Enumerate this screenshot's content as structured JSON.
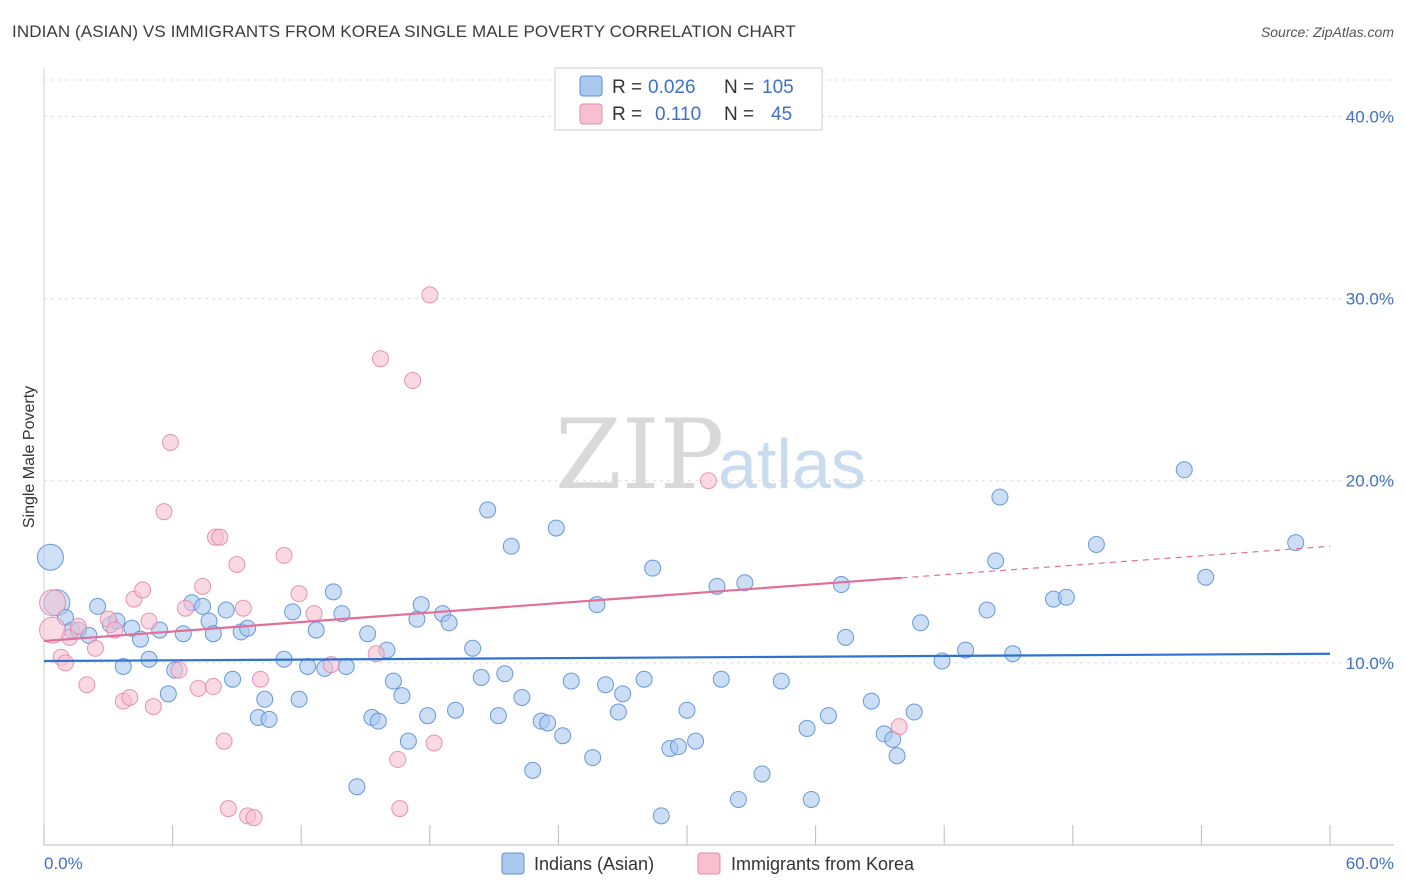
{
  "title": "INDIAN (ASIAN) VS IMMIGRANTS FROM KOREA SINGLE MALE POVERTY CORRELATION CHART",
  "source": "Source: ZipAtlas.com",
  "watermark": {
    "zip": "ZIP",
    "atlas": "atlas"
  },
  "legend": {
    "rows": [
      {
        "r_label": "R =",
        "r_value": "0.026",
        "n_label": "N =",
        "n_value": "105"
      },
      {
        "r_label": "R =",
        "r_value": "0.110",
        "n_label": "N =",
        "n_value": "45"
      }
    ]
  },
  "colors": {
    "blue_fill": "#a8c8ee",
    "blue_stroke": "#5b8fd6",
    "blue_line": "#2f72d0",
    "pink_fill": "#f7bfd0",
    "pink_stroke": "#e48aa8",
    "pink_line": "#e0709a"
  },
  "chart_data": {
    "type": "scatter",
    "title": "INDIAN (ASIAN) VS IMMIGRANTS FROM KOREA SINGLE MALE POVERTY CORRELATION CHART",
    "xlabel": "",
    "ylabel": "Single Male Poverty",
    "xlim": [
      0,
      60
    ],
    "ylim": [
      0,
      42
    ],
    "x_tick_labels": [
      "0.0%",
      "60.0%"
    ],
    "y_ticks": [
      10,
      20,
      30,
      40
    ],
    "y_tick_labels": [
      "10.0%",
      "20.0%",
      "30.0%",
      "40.0%"
    ],
    "grid": true,
    "legend_position": "top-center",
    "series": [
      {
        "name": "Indians (Asian)",
        "r": 0.026,
        "n": 105,
        "trend": {
          "x0": 0,
          "y0": 10.1,
          "x1": 60,
          "y1": 10.5,
          "dashed_from": null
        },
        "points": [
          [
            0.3,
            15.8
          ],
          [
            0.6,
            13.3
          ],
          [
            1.0,
            12.5
          ],
          [
            1.3,
            11.8
          ],
          [
            1.6,
            11.8
          ],
          [
            2.1,
            11.5
          ],
          [
            2.5,
            13.1
          ],
          [
            3.1,
            12.1
          ],
          [
            3.4,
            12.3
          ],
          [
            3.7,
            9.8
          ],
          [
            4.1,
            11.9
          ],
          [
            4.5,
            11.3
          ],
          [
            4.9,
            10.2
          ],
          [
            5.4,
            11.8
          ],
          [
            5.8,
            8.3
          ],
          [
            6.1,
            9.6
          ],
          [
            6.5,
            11.6
          ],
          [
            6.9,
            13.3
          ],
          [
            7.4,
            13.1
          ],
          [
            7.7,
            12.3
          ],
          [
            7.9,
            11.6
          ],
          [
            8.5,
            12.9
          ],
          [
            8.8,
            9.1
          ],
          [
            9.2,
            11.7
          ],
          [
            9.5,
            11.9
          ],
          [
            10.0,
            7.0
          ],
          [
            10.3,
            8.0
          ],
          [
            10.5,
            6.9
          ],
          [
            11.2,
            10.2
          ],
          [
            11.6,
            12.8
          ],
          [
            11.9,
            8.0
          ],
          [
            12.3,
            9.8
          ],
          [
            12.7,
            11.8
          ],
          [
            13.1,
            9.7
          ],
          [
            13.5,
            13.9
          ],
          [
            13.9,
            12.7
          ],
          [
            14.1,
            9.8
          ],
          [
            14.6,
            3.2
          ],
          [
            15.1,
            11.6
          ],
          [
            15.3,
            7.0
          ],
          [
            15.6,
            6.8
          ],
          [
            16.0,
            10.7
          ],
          [
            16.3,
            9.0
          ],
          [
            16.7,
            8.2
          ],
          [
            17.0,
            5.7
          ],
          [
            17.4,
            12.4
          ],
          [
            17.6,
            13.2
          ],
          [
            17.9,
            7.1
          ],
          [
            18.6,
            12.7
          ],
          [
            18.9,
            12.2
          ],
          [
            19.2,
            7.4
          ],
          [
            20.0,
            10.8
          ],
          [
            20.4,
            9.2
          ],
          [
            20.7,
            18.4
          ],
          [
            21.2,
            7.1
          ],
          [
            21.5,
            9.4
          ],
          [
            21.8,
            16.4
          ],
          [
            22.3,
            8.1
          ],
          [
            22.8,
            4.1
          ],
          [
            23.2,
            6.8
          ],
          [
            23.5,
            6.7
          ],
          [
            23.9,
            17.4
          ],
          [
            24.2,
            6.0
          ],
          [
            24.6,
            9.0
          ],
          [
            25.6,
            4.8
          ],
          [
            25.8,
            13.2
          ],
          [
            26.2,
            8.8
          ],
          [
            26.8,
            7.3
          ],
          [
            27.0,
            8.3
          ],
          [
            28.0,
            9.1
          ],
          [
            28.4,
            15.2
          ],
          [
            28.8,
            1.6
          ],
          [
            29.2,
            5.3
          ],
          [
            29.6,
            5.4
          ],
          [
            30.0,
            7.4
          ],
          [
            30.4,
            5.7
          ],
          [
            31.4,
            14.2
          ],
          [
            31.6,
            9.1
          ],
          [
            32.4,
            2.5
          ],
          [
            32.7,
            14.4
          ],
          [
            33.5,
            3.9
          ],
          [
            34.4,
            9.0
          ],
          [
            35.8,
            2.5
          ],
          [
            35.6,
            6.4
          ],
          [
            36.6,
            7.1
          ],
          [
            37.2,
            14.3
          ],
          [
            37.4,
            11.4
          ],
          [
            38.6,
            7.9
          ],
          [
            39.2,
            6.1
          ],
          [
            39.6,
            5.8
          ],
          [
            39.8,
            4.9
          ],
          [
            40.6,
            7.3
          ],
          [
            40.9,
            12.2
          ],
          [
            41.9,
            10.1
          ],
          [
            43.0,
            10.7
          ],
          [
            44.0,
            12.9
          ],
          [
            44.4,
            15.6
          ],
          [
            44.6,
            19.1
          ],
          [
            45.2,
            10.5
          ],
          [
            47.1,
            13.5
          ],
          [
            47.7,
            13.6
          ],
          [
            49.1,
            16.5
          ],
          [
            53.2,
            20.6
          ],
          [
            54.2,
            14.7
          ],
          [
            58.4,
            16.6
          ]
        ],
        "big_points": [
          0,
          1
        ]
      },
      {
        "name": "Immigrants from Korea",
        "r": 0.11,
        "n": 45,
        "trend": {
          "x0": 0,
          "y0": 11.2,
          "x1": 60,
          "y1": 16.4,
          "dashed_from": 40.0
        },
        "points": [
          [
            0.4,
            13.3
          ],
          [
            0.4,
            11.8
          ],
          [
            0.8,
            10.3
          ],
          [
            1.0,
            10.0
          ],
          [
            1.2,
            11.4
          ],
          [
            1.6,
            12.0
          ],
          [
            2.0,
            8.8
          ],
          [
            2.4,
            10.8
          ],
          [
            3.0,
            12.4
          ],
          [
            3.3,
            11.8
          ],
          [
            3.7,
            7.9
          ],
          [
            4.0,
            8.1
          ],
          [
            4.2,
            13.5
          ],
          [
            4.6,
            14.0
          ],
          [
            4.9,
            12.3
          ],
          [
            5.1,
            7.6
          ],
          [
            5.6,
            18.3
          ],
          [
            5.9,
            22.1
          ],
          [
            6.3,
            9.6
          ],
          [
            6.6,
            13.0
          ],
          [
            7.2,
            8.6
          ],
          [
            7.4,
            14.2
          ],
          [
            7.9,
            8.7
          ],
          [
            8.0,
            16.9
          ],
          [
            8.2,
            16.9
          ],
          [
            8.4,
            5.7
          ],
          [
            8.6,
            2.0
          ],
          [
            9.0,
            15.4
          ],
          [
            9.3,
            13.0
          ],
          [
            9.5,
            1.6
          ],
          [
            9.8,
            1.5
          ],
          [
            10.1,
            9.1
          ],
          [
            11.2,
            15.9
          ],
          [
            11.9,
            13.8
          ],
          [
            12.6,
            12.7
          ],
          [
            13.4,
            9.9
          ],
          [
            15.5,
            10.5
          ],
          [
            15.7,
            26.7
          ],
          [
            16.5,
            4.7
          ],
          [
            16.6,
            2.0
          ],
          [
            17.2,
            25.5
          ],
          [
            18.0,
            30.2
          ],
          [
            18.2,
            5.6
          ],
          [
            31.0,
            20.0
          ],
          [
            39.9,
            6.5
          ]
        ],
        "big_points": [
          0,
          1
        ]
      }
    ]
  },
  "bottom_legend": {
    "blue_label": "Indians (Asian)",
    "pink_label": "Immigrants from Korea"
  }
}
